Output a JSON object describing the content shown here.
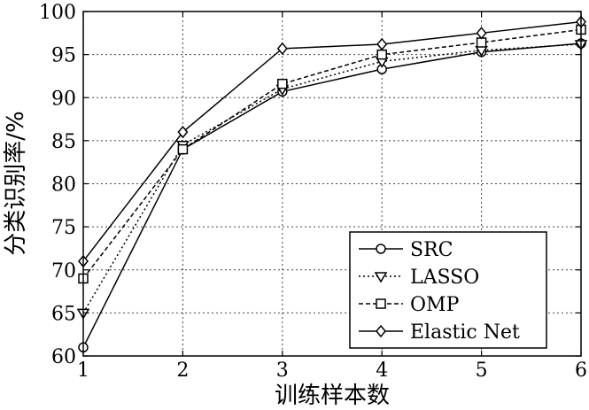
{
  "chart_data": {
    "type": "line",
    "x": [
      1,
      2,
      3,
      4,
      5,
      6
    ],
    "xlim": [
      1,
      6
    ],
    "ylim": [
      60,
      100
    ],
    "xticks": [
      1,
      2,
      3,
      4,
      5,
      6
    ],
    "yticks": [
      60,
      65,
      70,
      75,
      80,
      85,
      90,
      95,
      100
    ],
    "xlabel": "训练样本数",
    "ylabel": "分类识别率/%",
    "grid": true,
    "legend_position": "bottom-right",
    "series": [
      {
        "name": "SRC",
        "marker": "circle",
        "dash": "solid",
        "values": [
          61.0,
          84.0,
          90.7,
          93.3,
          95.3,
          96.3
        ]
      },
      {
        "name": "LASSO",
        "marker": "triangle-down",
        "dash": "dotted",
        "values": [
          65.0,
          84.5,
          91.0,
          94.2,
          95.5,
          96.2
        ]
      },
      {
        "name": "OMP",
        "marker": "square",
        "dash": "dashed",
        "values": [
          69.0,
          84.0,
          91.6,
          95.0,
          96.4,
          97.9
        ]
      },
      {
        "name": "Elastic Net",
        "marker": "diamond",
        "dash": "solid",
        "values": [
          71.0,
          86.0,
          95.7,
          96.2,
          97.5,
          98.8
        ]
      }
    ]
  }
}
